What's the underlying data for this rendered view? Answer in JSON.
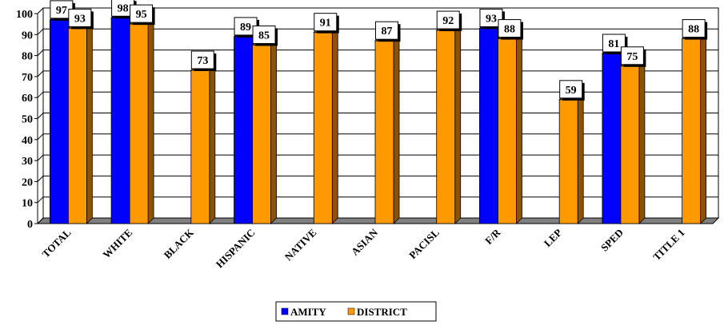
{
  "chart_data": {
    "type": "bar",
    "categories": [
      "TOTAL",
      "WHITE",
      "BLACK",
      "HISPANIC",
      "NATIVE",
      "ASIAN",
      "PACISL",
      "F/R",
      "LEP",
      "SPED",
      "TITLE 1"
    ],
    "series": [
      {
        "name": "AMITY",
        "color": "#0000ff",
        "values": [
          97,
          98,
          null,
          89,
          null,
          null,
          null,
          93,
          null,
          81,
          null
        ]
      },
      {
        "name": "DISTRICT",
        "color": "#ff9900",
        "values": [
          93,
          95,
          73,
          85,
          91,
          87,
          92,
          88,
          59,
          75,
          88
        ]
      }
    ],
    "ylim": [
      0,
      100
    ],
    "yticks": [
      0,
      10,
      20,
      30,
      40,
      50,
      60,
      70,
      80,
      90,
      100
    ],
    "grid": true,
    "legend": "bottom-center",
    "style": "3d"
  }
}
